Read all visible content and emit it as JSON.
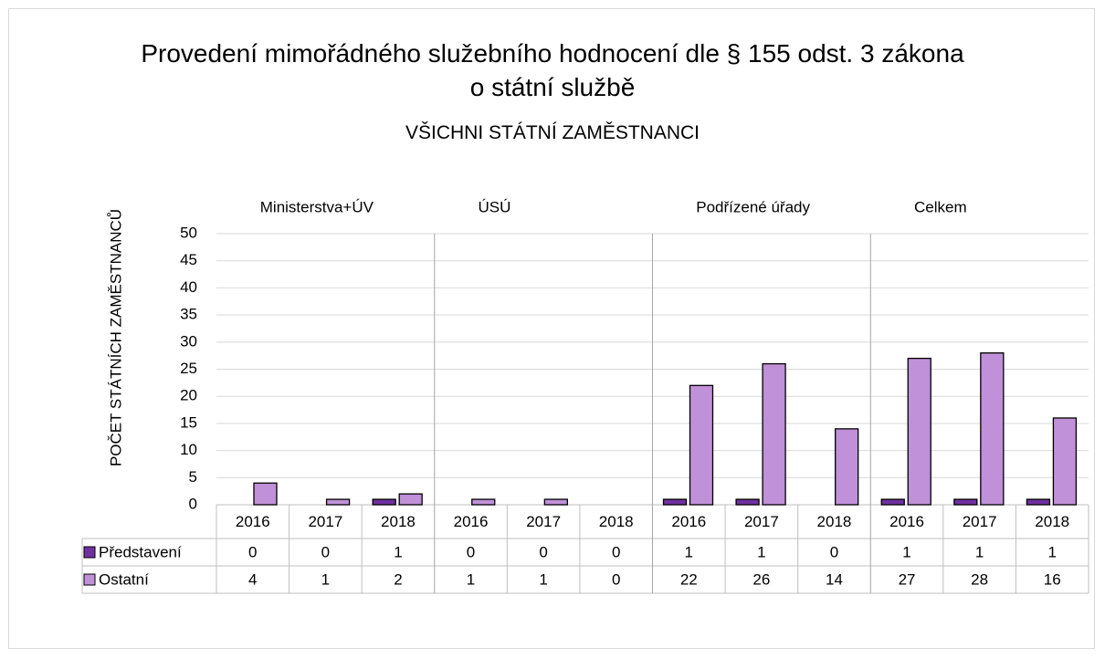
{
  "chart_data": {
    "type": "bar",
    "title": "Provedení mimořádného služebního hodnocení dle § 155 odst. 3 zákona o státní službě",
    "subtitle": "VŠICHNI STÁTNÍ ZAMĚSTNANCI",
    "y_label": "POČET STÁTNÍCH ZAMĚSTNANCŮ",
    "groups": [
      "Ministerstva+ÚV",
      "ÚSÚ",
      "Podřízené úřady",
      "Celkem"
    ],
    "categories": [
      "2016",
      "2017",
      "2018",
      "2016",
      "2017",
      "2018",
      "2016",
      "2017",
      "2018",
      "2016",
      "2017",
      "2018"
    ],
    "series": [
      {
        "name": "Představení",
        "color": "#7030a0",
        "values": [
          0,
          0,
          1,
          0,
          0,
          0,
          1,
          1,
          0,
          1,
          1,
          1
        ]
      },
      {
        "name": "Ostatní",
        "color": "#c090d8",
        "values": [
          4,
          1,
          2,
          1,
          1,
          0,
          22,
          26,
          14,
          27,
          28,
          16
        ]
      }
    ],
    "ylim": [
      0,
      50
    ],
    "yticks": [
      0,
      5,
      10,
      15,
      20,
      25,
      30,
      35,
      40,
      45,
      50
    ],
    "grid": true
  }
}
